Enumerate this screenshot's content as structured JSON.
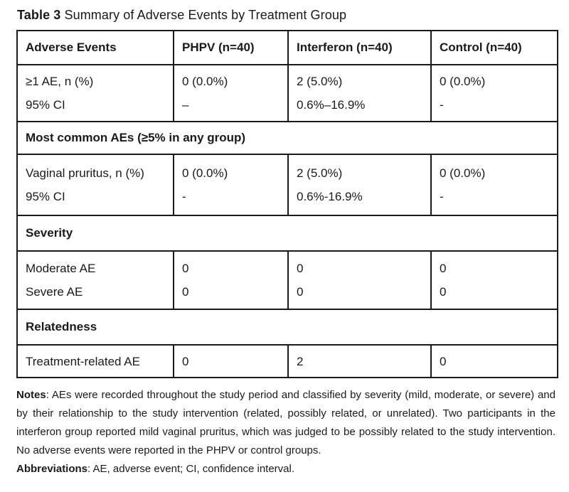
{
  "title": {
    "label": "Table 3",
    "text": " Summary of Adverse Events by Treatment Group"
  },
  "table": {
    "columns": [
      "Adverse Events",
      "PHPV (n=40)",
      "Interferon (n=40)",
      "Control (n=40)"
    ],
    "rows": [
      {
        "type": "data",
        "cells": [
          [
            "≥1 AE, n (%)",
            "95% CI"
          ],
          [
            "0 (0.0%)",
            "–"
          ],
          [
            "2 (5.0%)",
            "0.6%–16.9%"
          ],
          [
            "0 (0.0%)",
            "-"
          ]
        ]
      },
      {
        "type": "section",
        "label": "Most common AEs (≥5% in any group)"
      },
      {
        "type": "data",
        "cells": [
          [
            "Vaginal pruritus, n (%)",
            "95% CI"
          ],
          [
            "0 (0.0%)",
            "-"
          ],
          [
            "2 (5.0%)",
            "0.6%-16.9%"
          ],
          [
            "0 (0.0%)",
            "-"
          ]
        ]
      },
      {
        "type": "section",
        "label": "Severity"
      },
      {
        "type": "data",
        "cells": [
          [
            "Moderate AE",
            "Severe AE"
          ],
          [
            "0",
            "0"
          ],
          [
            "0",
            "0"
          ],
          [
            "0",
            "0"
          ]
        ]
      },
      {
        "type": "section",
        "label": "Relatedness"
      },
      {
        "type": "data",
        "cells": [
          [
            "Treatment-related AE"
          ],
          [
            "0"
          ],
          [
            "2"
          ],
          [
            "0"
          ]
        ]
      }
    ]
  },
  "notes": {
    "label": "Notes",
    "text": ": AEs were recorded throughout the study period and classified by severity (mild, moderate, or severe) and by their relationship to the study intervention (related, possibly related, or unrelated). Two participants in the interferon group reported mild vaginal pruritus, which was judged to be possibly related to the study intervention. No adverse events were reported in the PHPV or control groups."
  },
  "abbreviations": {
    "label": "Abbreviations",
    "text": ": AE, adverse event; CI, confidence interval."
  }
}
